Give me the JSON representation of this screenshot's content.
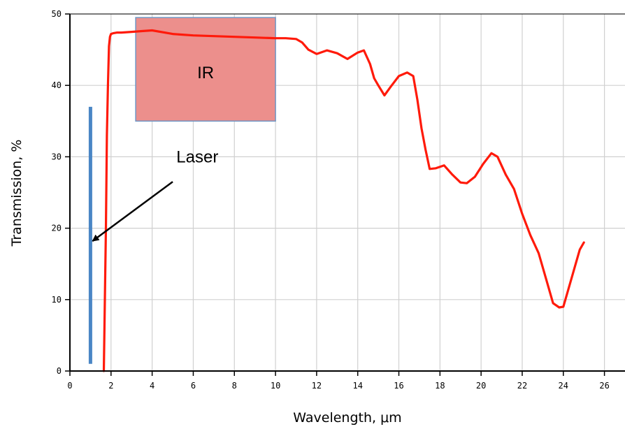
{
  "chart_data": {
    "type": "line",
    "xlabel": "Wavelength, μm",
    "ylabel": "Transmission, %",
    "xlim": [
      0,
      27
    ],
    "ylim": [
      0,
      50
    ],
    "xticks": [
      0,
      2,
      4,
      6,
      8,
      10,
      12,
      14,
      16,
      18,
      20,
      22,
      24,
      26
    ],
    "yticks": [
      0,
      10,
      20,
      30,
      40,
      50
    ],
    "grid": true,
    "colors": {
      "curve": "#ff1a0a",
      "laser": "#4a86c5",
      "ir_fill": "#ec8f8c",
      "ir_border": "#6f96c4",
      "grid": "#d0d0d0"
    },
    "series": [
      {
        "x": [
          1.65,
          1.7,
          1.75,
          1.8,
          1.85,
          1.9,
          1.95,
          2.0,
          2.1,
          2.3,
          2.5,
          3.0,
          3.5,
          4.0,
          5.0,
          6.0,
          7.0,
          8.0,
          9.0,
          10.0,
          10.5,
          11.0,
          11.3,
          11.6,
          12.0,
          12.5,
          13.0,
          13.5,
          14.0,
          14.3,
          14.6,
          14.8,
          15.0,
          15.3,
          15.6,
          16.0,
          16.4,
          16.7,
          16.9,
          17.1,
          17.3,
          17.5,
          17.8,
          18.2,
          18.6,
          19.0,
          19.3,
          19.7,
          20.1,
          20.5,
          20.8,
          21.2,
          21.6,
          22.0,
          22.4,
          22.8,
          23.2,
          23.5,
          23.8,
          24.0,
          24.2,
          24.5,
          24.8,
          25.0
        ],
        "y": [
          0,
          10,
          20,
          33,
          40,
          45.5,
          46.8,
          47.2,
          47.3,
          47.4,
          47.4,
          47.5,
          47.6,
          47.7,
          47.2,
          47.0,
          46.9,
          46.8,
          46.7,
          46.6,
          46.6,
          46.5,
          46.0,
          45.0,
          44.4,
          44.9,
          44.5,
          43.7,
          44.6,
          44.9,
          43.0,
          41.0,
          40.0,
          38.6,
          39.8,
          41.3,
          41.8,
          41.3,
          38.0,
          34.0,
          31.0,
          28.3,
          28.4,
          28.8,
          27.5,
          26.4,
          26.3,
          27.2,
          29.0,
          30.5,
          30.0,
          27.5,
          25.5,
          22.0,
          19.0,
          16.5,
          12.5,
          9.5,
          8.9,
          9.0,
          11.0,
          14.0,
          17.0,
          18.0
        ]
      }
    ],
    "laser": {
      "x": 1.0,
      "y_start": 1,
      "y_end": 37
    },
    "ir_region": {
      "x_start": 3.2,
      "x_end": 10.0,
      "y_start": 35,
      "y_end": 49.5
    },
    "annotations": [
      {
        "text": "IR",
        "x": 6.6,
        "y": 41.8
      },
      {
        "text": "Laser",
        "x": 6.2,
        "y": 30
      }
    ],
    "arrow": {
      "from_x": 5.0,
      "from_y": 26.5,
      "to_x": 1.1,
      "to_y": 18.2
    }
  }
}
